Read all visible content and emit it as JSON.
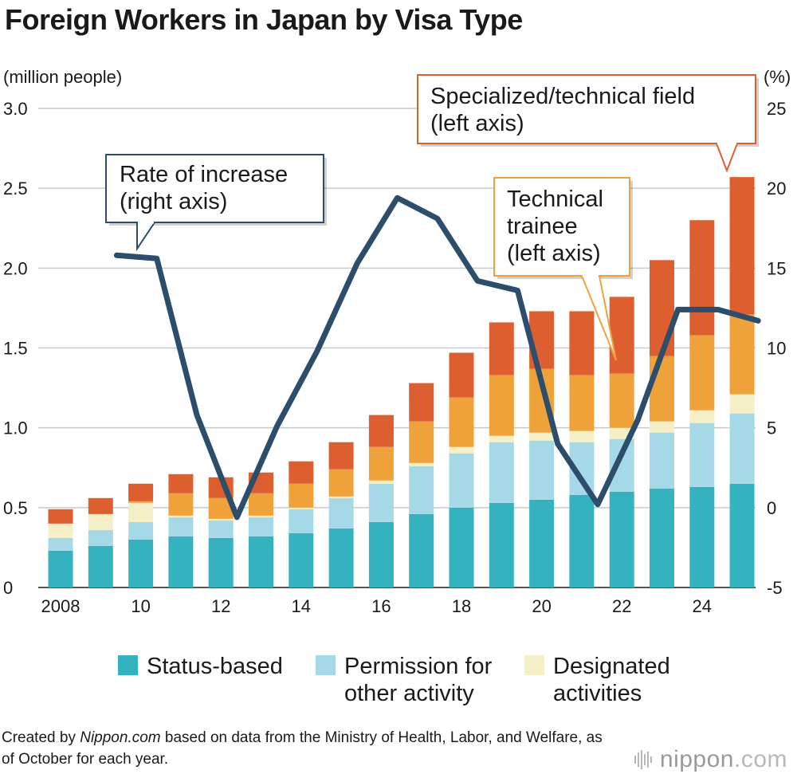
{
  "title": "Foreign Workers in Japan by Visa Type",
  "chart_data": {
    "type": "bar",
    "stacked": true,
    "title": "Foreign Workers in Japan by Visa Type",
    "ylabel_left": "(million people)",
    "ylabel_right": "(%)",
    "ylim_left": [
      0,
      3.0
    ],
    "ylim_right": [
      -5,
      25
    ],
    "left_ticks": [
      "0",
      "0.5",
      "1.0",
      "1.5",
      "2.0",
      "2.5",
      "3.0"
    ],
    "right_ticks": [
      "-5",
      "0",
      "5",
      "10",
      "15",
      "20",
      "25"
    ],
    "x_tick_labels": [
      "2008",
      "10",
      "12",
      "14",
      "16",
      "18",
      "20",
      "22",
      "24"
    ],
    "categories": [
      2008,
      2009,
      2010,
      2011,
      2012,
      2013,
      2014,
      2015,
      2016,
      2017,
      2018,
      2019,
      2020,
      2021,
      2022,
      2023,
      2024,
      2025
    ],
    "series": [
      {
        "name": "Status-based",
        "color": "#35b2c0",
        "values": [
          0.23,
          0.26,
          0.3,
          0.32,
          0.31,
          0.32,
          0.34,
          0.37,
          0.41,
          0.46,
          0.5,
          0.53,
          0.55,
          0.58,
          0.6,
          0.62,
          0.63,
          0.65
        ]
      },
      {
        "name": "Permission for other activity",
        "color": "#a5d9e8",
        "values": [
          0.08,
          0.1,
          0.11,
          0.12,
          0.11,
          0.12,
          0.15,
          0.19,
          0.24,
          0.3,
          0.34,
          0.38,
          0.37,
          0.33,
          0.33,
          0.35,
          0.4,
          0.44
        ]
      },
      {
        "name": "Designated activities",
        "color": "#f4efc7",
        "values": [
          0.09,
          0.1,
          0.12,
          0.01,
          0.01,
          0.01,
          0.01,
          0.01,
          0.02,
          0.02,
          0.04,
          0.04,
          0.05,
          0.07,
          0.07,
          0.07,
          0.08,
          0.12
        ]
      },
      {
        "name": "Technical trainee",
        "color": "#f0a23a",
        "values": [
          0.0,
          0.0,
          0.01,
          0.14,
          0.13,
          0.14,
          0.15,
          0.17,
          0.21,
          0.26,
          0.31,
          0.38,
          0.4,
          0.35,
          0.34,
          0.41,
          0.47,
          0.5
        ]
      },
      {
        "name": "Specialized/technical field",
        "color": "#dd5f30",
        "values": [
          0.09,
          0.1,
          0.11,
          0.12,
          0.13,
          0.13,
          0.14,
          0.17,
          0.2,
          0.24,
          0.28,
          0.33,
          0.36,
          0.4,
          0.48,
          0.6,
          0.72,
          0.86
        ]
      }
    ],
    "line": {
      "name": "Rate of increase",
      "axis": "right",
      "color": "#2c4d6b",
      "x": [
        2009.4,
        2010.4,
        2011.4,
        2012.4,
        2013.4,
        2014.4,
        2015.4,
        2016.4,
        2017.4,
        2018.4,
        2019.4,
        2020.4,
        2021.4,
        2022.4,
        2023.4,
        2024.4,
        2025.4
      ],
      "values": [
        15.8,
        15.6,
        5.8,
        -0.6,
        5.1,
        9.8,
        15.3,
        19.4,
        18.1,
        14.2,
        13.6,
        4.0,
        0.2,
        5.5,
        12.4,
        12.4,
        11.7
      ]
    },
    "annotations": [
      {
        "lines": [
          "Rate of increase",
          "(right axis)"
        ],
        "border": "#2c4d6b"
      },
      {
        "lines": [
          "Specialized/technical field",
          "(left axis)"
        ],
        "border": "#dd5f30"
      },
      {
        "lines": [
          "Technical",
          "trainee",
          "(left axis)"
        ],
        "border": "#f0a23a"
      }
    ],
    "legend": [
      {
        "lines": [
          "Status-based"
        ],
        "color": "#35b2c0"
      },
      {
        "lines": [
          "Permission for",
          "other activity"
        ],
        "color": "#a5d9e8"
      },
      {
        "lines": [
          "Designated",
          "activities"
        ],
        "color": "#f4efc7"
      }
    ]
  },
  "footer": {
    "prefix": "Created by ",
    "source_name": "Nippon.com",
    "suffix": " based on data from the Ministry of Health, Labor, and Welfare, as of October for each year."
  },
  "logo": {
    "name": "nippon",
    "domain": ".com"
  }
}
